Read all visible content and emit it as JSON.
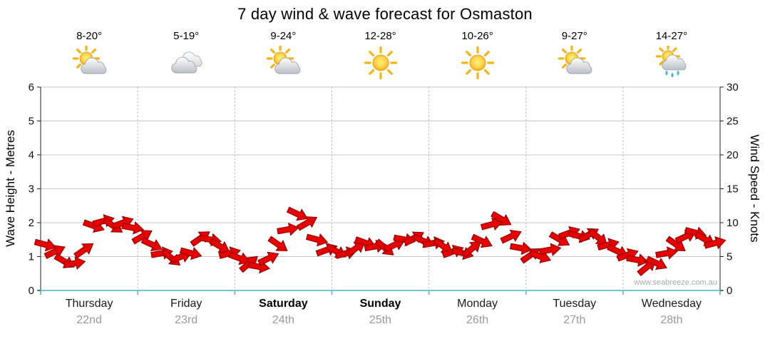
{
  "title": "7 day wind & wave forecast for Osmaston",
  "watermark": "www.seabreeze.com.au",
  "axes": {
    "left_label": "Wave Height - Metres",
    "right_label": "Wind Speed - Knots"
  },
  "days": [
    {
      "name": "Thursday",
      "date": "22nd",
      "temp": "8-20°",
      "icon": "partly-cloudy",
      "bold": false
    },
    {
      "name": "Friday",
      "date": "23rd",
      "temp": "5-19°",
      "icon": "cloudy",
      "bold": false
    },
    {
      "name": "Saturday",
      "date": "24th",
      "temp": "9-24°",
      "icon": "partly-cloudy",
      "bold": true
    },
    {
      "name": "Sunday",
      "date": "25th",
      "temp": "12-28°",
      "icon": "sunny",
      "bold": true
    },
    {
      "name": "Monday",
      "date": "26th",
      "temp": "10-26°",
      "icon": "sunny",
      "bold": false
    },
    {
      "name": "Tuesday",
      "date": "27th",
      "temp": "9-27°",
      "icon": "partly-cloudy",
      "bold": false
    },
    {
      "name": "Wednesday",
      "date": "28th",
      "temp": "14-27°",
      "icon": "rain",
      "bold": false
    }
  ],
  "chart_data": {
    "type": "scatter",
    "subtype": "wind-barb-band",
    "title": "7 day wind & wave forecast for Osmaston",
    "x_categories": [
      "Thursday",
      "Friday",
      "Saturday",
      "Sunday",
      "Monday",
      "Tuesday",
      "Wednesday"
    ],
    "points_per_day": 10,
    "y_left": {
      "label": "Wave Height - Metres",
      "min": 0,
      "max": 6,
      "ticks": [
        0,
        1,
        2,
        3,
        4,
        5,
        6
      ]
    },
    "y_right": {
      "label": "Wind Speed - Knots",
      "min": 0,
      "max": 30,
      "ticks": [
        0,
        5,
        10,
        15,
        20,
        25,
        30
      ]
    },
    "grid": {
      "horizontal": true,
      "vertical_day_dividers": true
    },
    "arrow_color": "#e60000",
    "arrow_outline": "#8b0000",
    "bottom_axis_color": "#74c6ce",
    "point_format": [
      "wave_height_m",
      "arrow_angle_deg"
    ],
    "series": [
      {
        "name": "Wave height with wind direction barbs",
        "points": [
          [
            1.35,
            15
          ],
          [
            1.15,
            -25
          ],
          [
            0.85,
            30
          ],
          [
            0.8,
            -10
          ],
          [
            1.2,
            -35
          ],
          [
            1.9,
            20
          ],
          [
            2.05,
            -15
          ],
          [
            1.9,
            35
          ],
          [
            2.0,
            -20
          ],
          [
            1.85,
            10
          ],
          [
            1.6,
            -30
          ],
          [
            1.35,
            25
          ],
          [
            1.1,
            -10
          ],
          [
            0.95,
            40
          ],
          [
            1.0,
            -20
          ],
          [
            1.1,
            15
          ],
          [
            1.55,
            -35
          ],
          [
            1.5,
            10
          ],
          [
            1.3,
            30
          ],
          [
            1.1,
            -15
          ],
          [
            0.95,
            20
          ],
          [
            0.8,
            -40
          ],
          [
            0.7,
            10
          ],
          [
            0.95,
            -25
          ],
          [
            1.35,
            35
          ],
          [
            1.8,
            -10
          ],
          [
            2.25,
            25
          ],
          [
            2.0,
            -30
          ],
          [
            1.5,
            15
          ],
          [
            1.2,
            -20
          ],
          [
            1.15,
            30
          ],
          [
            1.1,
            -15
          ],
          [
            1.25,
            -35
          ],
          [
            1.4,
            20
          ],
          [
            1.3,
            -10
          ],
          [
            1.25,
            40
          ],
          [
            1.35,
            -25
          ],
          [
            1.5,
            10
          ],
          [
            1.55,
            -30
          ],
          [
            1.45,
            25
          ],
          [
            1.4,
            -10
          ],
          [
            1.3,
            35
          ],
          [
            1.15,
            -20
          ],
          [
            1.1,
            15
          ],
          [
            1.25,
            -40
          ],
          [
            1.45,
            25
          ],
          [
            1.95,
            -15
          ],
          [
            2.1,
            30
          ],
          [
            1.6,
            -25
          ],
          [
            1.25,
            10
          ],
          [
            1.05,
            -35
          ],
          [
            1.0,
            20
          ],
          [
            1.2,
            -10
          ],
          [
            1.5,
            30
          ],
          [
            1.7,
            -20
          ],
          [
            1.6,
            15
          ],
          [
            1.65,
            -30
          ],
          [
            1.55,
            40
          ],
          [
            1.35,
            -15
          ],
          [
            1.15,
            25
          ],
          [
            1.05,
            -20
          ],
          [
            0.9,
            10
          ],
          [
            0.7,
            -40
          ],
          [
            0.8,
            25
          ],
          [
            1.1,
            -10
          ],
          [
            1.35,
            35
          ],
          [
            1.6,
            -25
          ],
          [
            1.7,
            15
          ],
          [
            1.5,
            30
          ],
          [
            1.4,
            -15
          ]
        ]
      }
    ]
  }
}
